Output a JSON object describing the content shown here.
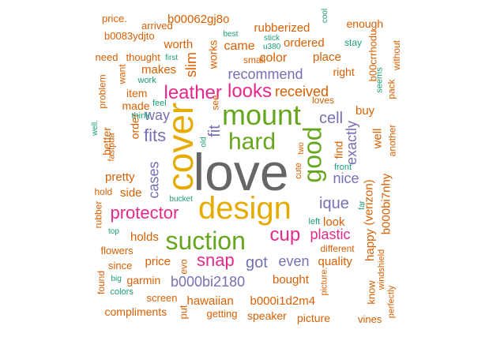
{
  "colors": {
    "orange": "#D95F02",
    "pink": "#E7298A",
    "green": "#66A61E",
    "gold": "#E6AB02",
    "purple": "#7570B3",
    "teal": "#1B9E77",
    "brown": "#A6761D",
    "gray": "#666666"
  },
  "words": [
    {
      "text": "love",
      "color": "gray"
    },
    {
      "text": "design",
      "color": "gold"
    },
    {
      "text": "cover",
      "color": "gold"
    },
    {
      "text": "mount",
      "color": "green"
    },
    {
      "text": "hard",
      "color": "green"
    },
    {
      "text": "suction",
      "color": "green"
    },
    {
      "text": "protector",
      "color": "pink"
    },
    {
      "text": "leather",
      "color": "pink"
    },
    {
      "text": "looks",
      "color": "pink"
    },
    {
      "text": "good",
      "color": "green"
    },
    {
      "text": "recommend",
      "color": "purple"
    },
    {
      "text": "cup",
      "color": "pink"
    },
    {
      "text": "snap",
      "color": "pink"
    },
    {
      "text": "fits",
      "color": "purple"
    },
    {
      "text": "cases",
      "color": "purple"
    },
    {
      "text": "fit",
      "color": "purple"
    },
    {
      "text": "ique",
      "color": "purple"
    },
    {
      "text": "exactly",
      "color": "purple"
    },
    {
      "text": "nice",
      "color": "purple"
    },
    {
      "text": "cell",
      "color": "purple"
    },
    {
      "text": "plastic",
      "color": "pink"
    },
    {
      "text": "got",
      "color": "purple"
    },
    {
      "text": "even",
      "color": "purple"
    },
    {
      "text": "b000bi2180",
      "color": "purple"
    },
    {
      "text": "way",
      "color": "purple"
    },
    {
      "text": "received",
      "color": "orange"
    },
    {
      "text": "came",
      "color": "orange"
    },
    {
      "text": "color",
      "color": "orange"
    },
    {
      "text": "works",
      "color": "orange"
    },
    {
      "text": "slim",
      "color": "orange"
    },
    {
      "text": "makes",
      "color": "orange"
    },
    {
      "text": "worth",
      "color": "orange"
    },
    {
      "text": "item",
      "color": "orange"
    },
    {
      "text": "made",
      "color": "orange"
    },
    {
      "text": "order",
      "color": "orange"
    },
    {
      "text": "better",
      "color": "orange"
    },
    {
      "text": "pretty",
      "color": "orange"
    },
    {
      "text": "side",
      "color": "orange"
    },
    {
      "text": "holds",
      "color": "orange"
    },
    {
      "text": "price",
      "color": "orange"
    },
    {
      "text": "garmin",
      "color": "orange"
    },
    {
      "text": "hawaiian",
      "color": "orange"
    },
    {
      "text": "b000i1d2m4",
      "color": "orange"
    },
    {
      "text": "bought",
      "color": "orange"
    },
    {
      "text": "quality",
      "color": "orange"
    },
    {
      "text": "look",
      "color": "orange"
    },
    {
      "text": "find",
      "color": "orange"
    },
    {
      "text": "buy",
      "color": "orange"
    },
    {
      "text": "well",
      "color": "orange"
    },
    {
      "text": "happy",
      "color": "orange"
    },
    {
      "text": "(verizon)",
      "color": "orange"
    },
    {
      "text": "b000bi7nhy",
      "color": "orange"
    },
    {
      "text": "rubberized",
      "color": "orange"
    },
    {
      "text": "ordered",
      "color": "orange"
    },
    {
      "text": "place",
      "color": "orange"
    },
    {
      "text": "right",
      "color": "orange"
    },
    {
      "text": "b00062gj8o",
      "color": "orange"
    },
    {
      "text": "arrived",
      "color": "orange"
    },
    {
      "text": "price.",
      "color": "orange"
    },
    {
      "text": "b0083ydjto",
      "color": "orange"
    },
    {
      "text": "need",
      "color": "orange"
    },
    {
      "text": "thought",
      "color": "orange"
    },
    {
      "text": "enough",
      "color": "orange"
    },
    {
      "text": "b00crrhodu",
      "color": "orange"
    },
    {
      "text": "without",
      "color": "orange"
    },
    {
      "text": "seems",
      "color": "teal"
    },
    {
      "text": "pack",
      "color": "orange"
    },
    {
      "text": "another",
      "color": "orange"
    },
    {
      "text": "want",
      "color": "orange"
    },
    {
      "text": "problem",
      "color": "orange"
    },
    {
      "text": "see",
      "color": "orange"
    },
    {
      "text": "feel",
      "color": "teal"
    },
    {
      "text": "think",
      "color": "teal"
    },
    {
      "text": "work",
      "color": "teal"
    },
    {
      "text": "first",
      "color": "teal"
    },
    {
      "text": "best",
      "color": "teal"
    },
    {
      "text": "stick",
      "color": "teal"
    },
    {
      "text": "u380",
      "color": "teal"
    },
    {
      "text": "cool",
      "color": "teal"
    },
    {
      "text": "stay",
      "color": "teal"
    },
    {
      "text": "small",
      "color": "orange"
    },
    {
      "text": "loves",
      "color": "orange"
    },
    {
      "text": "fastpda",
      "color": "orange"
    },
    {
      "text": "well.",
      "color": "teal"
    },
    {
      "text": "old",
      "color": "teal"
    },
    {
      "text": "two",
      "color": "orange"
    },
    {
      "text": "cute",
      "color": "orange"
    },
    {
      "text": "front",
      "color": "teal"
    },
    {
      "text": "hold",
      "color": "orange"
    },
    {
      "text": "bucket",
      "color": "teal"
    },
    {
      "text": "rubber",
      "color": "orange"
    },
    {
      "text": "top",
      "color": "teal"
    },
    {
      "text": "flowers",
      "color": "orange"
    },
    {
      "text": "since",
      "color": "orange"
    },
    {
      "text": "found",
      "color": "orange"
    },
    {
      "text": "big",
      "color": "teal"
    },
    {
      "text": "colors",
      "color": "teal"
    },
    {
      "text": "evo",
      "color": "orange"
    },
    {
      "text": "screen",
      "color": "orange"
    },
    {
      "text": "compliments",
      "color": "orange"
    },
    {
      "text": "put",
      "color": "orange"
    },
    {
      "text": "getting",
      "color": "orange"
    },
    {
      "text": "speaker",
      "color": "orange"
    },
    {
      "text": "picture",
      "color": "orange"
    },
    {
      "text": "picture.",
      "color": "orange"
    },
    {
      "text": "vines",
      "color": "orange"
    },
    {
      "text": "perfectly",
      "color": "orange"
    },
    {
      "text": "windshield",
      "color": "orange"
    },
    {
      "text": "know",
      "color": "orange"
    },
    {
      "text": "different",
      "color": "orange"
    },
    {
      "text": "left",
      "color": "teal"
    },
    {
      "text": "far",
      "color": "teal"
    }
  ]
}
